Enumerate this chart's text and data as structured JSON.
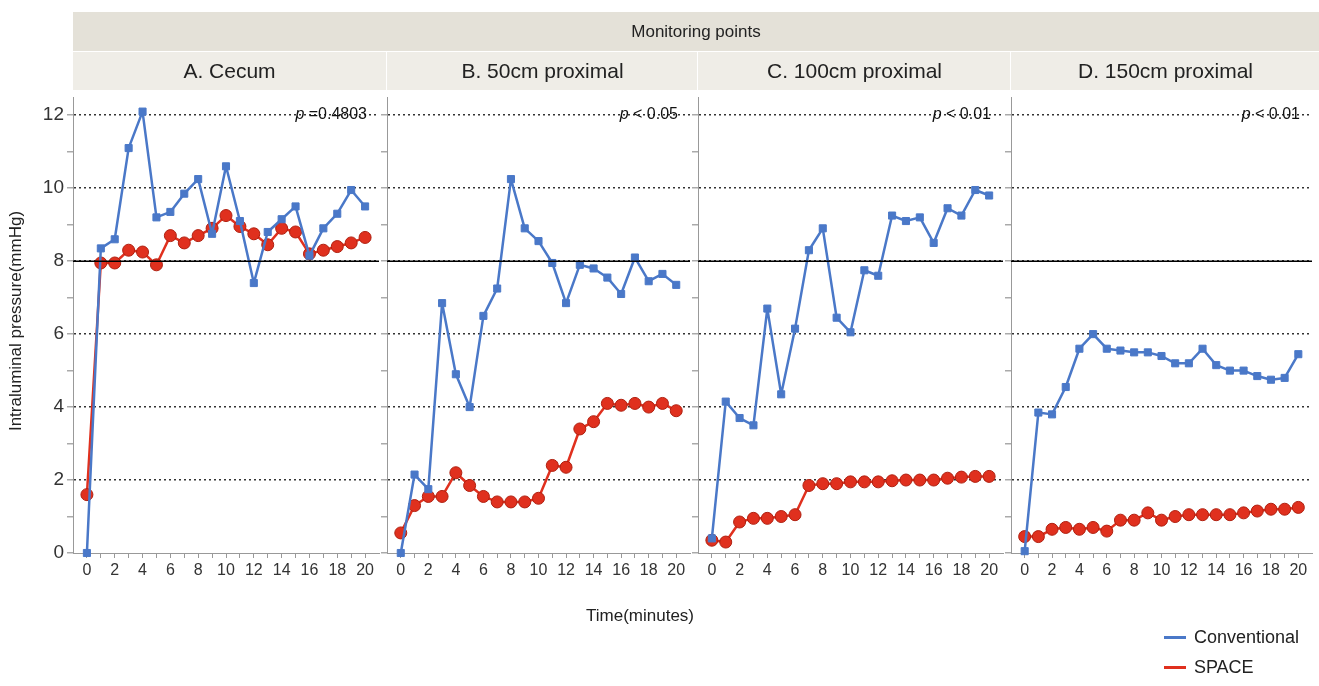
{
  "chart_data": [
    {
      "type": "line",
      "title": "A. Cecum",
      "ylabel": "Intraluminal pressure(mmHg)",
      "annotations": [
        "Monitoring points",
        "p =0.4803"
      ],
      "x": [
        0,
        1,
        2,
        3,
        4,
        5,
        6,
        7,
        8,
        9,
        10,
        11,
        12,
        13,
        14,
        15,
        16,
        17,
        18,
        19,
        20
      ],
      "series": [
        {
          "color": "#4a78c8",
          "marker": "square",
          "values": [
            0,
            8.35,
            8.6,
            11.1,
            12.1,
            9.2,
            9.35,
            9.85,
            10.25,
            8.75,
            10.6,
            9.1,
            7.4,
            8.8,
            9.15,
            9.5,
            8.15,
            8.9,
            9.3,
            9.95,
            9.5
          ]
        },
        {
          "color": "#e0301e",
          "marker": "circle",
          "values": [
            1.6,
            7.95,
            7.95,
            8.3,
            8.25,
            7.9,
            8.7,
            8.5,
            8.7,
            8.9,
            9.25,
            8.95,
            8.75,
            8.45,
            8.9,
            8.8,
            8.2,
            8.3,
            8.4,
            8.5,
            8.65
          ]
        }
      ],
      "xlim": [
        -1,
        21
      ],
      "ylim": [
        0,
        12.5
      ],
      "xticks": [
        0,
        {
          "value": 1,
          "label": null
        },
        2,
        {
          "value": 3,
          "label": null
        },
        4,
        {
          "value": 5,
          "label": null
        },
        6,
        {
          "value": 7,
          "label": null
        },
        8,
        {
          "value": 9,
          "label": null
        },
        10,
        {
          "value": 11,
          "label": null
        },
        12,
        {
          "value": 13,
          "label": null
        },
        14,
        {
          "value": 15,
          "label": null
        },
        16,
        {
          "value": 17,
          "label": null
        },
        18,
        {
          "value": 19,
          "label": null
        },
        20
      ],
      "yticks": [
        0,
        {
          "value": 1,
          "label": null
        },
        2,
        {
          "value": 3,
          "label": null
        },
        4,
        {
          "value": 5,
          "label": null
        },
        6,
        {
          "value": 7,
          "label": null
        },
        8,
        {
          "value": 9,
          "label": null
        },
        10,
        {
          "value": 11,
          "label": null
        },
        12
      ],
      "grid": "y",
      "ref_lines": [
        {
          "axis": "y",
          "value": 8,
          "color": "#000000"
        }
      ]
    },
    {
      "type": "line",
      "title": "B. 50cm proximal",
      "xlabel": "Time(minutes)",
      "annotations": [
        "p < 0.05"
      ],
      "x": [
        0,
        1,
        2,
        3,
        4,
        5,
        6,
        7,
        8,
        9,
        10,
        11,
        12,
        13,
        14,
        15,
        16,
        17,
        18,
        19,
        20
      ],
      "series": [
        {
          "color": "#4a78c8",
          "marker": "square",
          "values": [
            0,
            2.15,
            1.75,
            6.85,
            4.9,
            4.0,
            6.5,
            7.25,
            10.25,
            8.9,
            8.55,
            7.95,
            6.85,
            7.9,
            7.8,
            7.55,
            7.1,
            8.1,
            7.45,
            7.65,
            7.35
          ]
        },
        {
          "color": "#e0301e",
          "marker": "circle",
          "values": [
            0.55,
            1.3,
            1.55,
            1.55,
            2.2,
            1.85,
            1.55,
            1.4,
            1.4,
            1.4,
            1.5,
            2.4,
            2.35,
            3.4,
            3.6,
            4.1,
            4.05,
            4.1,
            4.0,
            4.1,
            3.9
          ]
        }
      ],
      "xlim": [
        -1,
        21
      ],
      "ylim": [
        0,
        12.5
      ],
      "xticks": [
        0,
        {
          "value": 1,
          "label": null
        },
        2,
        {
          "value": 3,
          "label": null
        },
        4,
        {
          "value": 5,
          "label": null
        },
        6,
        {
          "value": 7,
          "label": null
        },
        8,
        {
          "value": 9,
          "label": null
        },
        10,
        {
          "value": 11,
          "label": null
        },
        12,
        {
          "value": 13,
          "label": null
        },
        14,
        {
          "value": 15,
          "label": null
        },
        16,
        {
          "value": 17,
          "label": null
        },
        18,
        {
          "value": 19,
          "label": null
        },
        20
      ],
      "yticks": [
        0,
        {
          "value": 1,
          "label": null
        },
        2,
        {
          "value": 3,
          "label": null
        },
        4,
        {
          "value": 5,
          "label": null
        },
        6,
        {
          "value": 7,
          "label": null
        },
        8,
        {
          "value": 9,
          "label": null
        },
        10,
        {
          "value": 11,
          "label": null
        },
        12
      ],
      "tick_labels": "x",
      "grid": "y",
      "ref_lines": [
        {
          "axis": "y",
          "value": 8,
          "color": "#000000"
        }
      ]
    },
    {
      "type": "line",
      "title": "C. 100cm proximal",
      "annotations": [
        "p < 0.01"
      ],
      "x": [
        0,
        1,
        2,
        3,
        4,
        5,
        6,
        7,
        8,
        9,
        10,
        11,
        12,
        13,
        14,
        15,
        16,
        17,
        18,
        19,
        20
      ],
      "series": [
        {
          "color": "#4a78c8",
          "marker": "square",
          "values": [
            0.4,
            4.15,
            3.7,
            3.5,
            6.7,
            4.35,
            6.15,
            8.3,
            8.9,
            6.45,
            6.05,
            7.75,
            7.6,
            9.25,
            9.1,
            9.2,
            8.5,
            9.45,
            9.25,
            9.95,
            9.8
          ]
        },
        {
          "color": "#e0301e",
          "marker": "circle",
          "values": [
            0.35,
            0.3,
            0.85,
            0.95,
            0.95,
            1.0,
            1.05,
            1.85,
            1.9,
            1.9,
            1.95,
            1.95,
            1.95,
            1.98,
            2.0,
            2.0,
            2.0,
            2.05,
            2.08,
            2.1,
            2.1
          ]
        }
      ],
      "xlim": [
        -1,
        21
      ],
      "ylim": [
        0,
        12.5
      ],
      "xticks": [
        0,
        {
          "value": 1,
          "label": null
        },
        2,
        {
          "value": 3,
          "label": null
        },
        4,
        {
          "value": 5,
          "label": null
        },
        6,
        {
          "value": 7,
          "label": null
        },
        8,
        {
          "value": 9,
          "label": null
        },
        10,
        {
          "value": 11,
          "label": null
        },
        12,
        {
          "value": 13,
          "label": null
        },
        14,
        {
          "value": 15,
          "label": null
        },
        16,
        {
          "value": 17,
          "label": null
        },
        18,
        {
          "value": 19,
          "label": null
        },
        20
      ],
      "yticks": [
        0,
        {
          "value": 1,
          "label": null
        },
        2,
        {
          "value": 3,
          "label": null
        },
        4,
        {
          "value": 5,
          "label": null
        },
        6,
        {
          "value": 7,
          "label": null
        },
        8,
        {
          "value": 9,
          "label": null
        },
        10,
        {
          "value": 11,
          "label": null
        },
        12
      ],
      "tick_labels": "x",
      "grid": "y",
      "ref_lines": [
        {
          "axis": "y",
          "value": 8,
          "color": "#000000"
        }
      ]
    },
    {
      "type": "line",
      "title": "D. 150cm proximal",
      "annotations": [
        "p < 0.01"
      ],
      "x": [
        0,
        1,
        2,
        3,
        4,
        5,
        6,
        7,
        8,
        9,
        10,
        11,
        12,
        13,
        14,
        15,
        16,
        17,
        18,
        19,
        20
      ],
      "series": [
        {
          "name": "Conventional",
          "color": "#4a78c8",
          "marker": "square",
          "values": [
            0.05,
            3.85,
            3.8,
            4.55,
            5.6,
            6.0,
            5.6,
            5.55,
            5.5,
            5.5,
            5.4,
            5.2,
            5.2,
            5.6,
            5.15,
            5.0,
            5.0,
            4.85,
            4.75,
            4.8,
            5.45
          ]
        },
        {
          "name": "SPACE",
          "color": "#e0301e",
          "marker": "circle",
          "values": [
            0.45,
            0.45,
            0.65,
            0.7,
            0.65,
            0.7,
            0.6,
            0.9,
            0.9,
            1.1,
            0.9,
            1.0,
            1.05,
            1.05,
            1.05,
            1.05,
            1.1,
            1.15,
            1.2,
            1.2,
            1.25
          ]
        }
      ],
      "xlim": [
        -1,
        21
      ],
      "ylim": [
        0,
        12.5
      ],
      "xticks": [
        0,
        {
          "value": 1,
          "label": null
        },
        2,
        {
          "value": 3,
          "label": null
        },
        4,
        {
          "value": 5,
          "label": null
        },
        6,
        {
          "value": 7,
          "label": null
        },
        8,
        {
          "value": 9,
          "label": null
        },
        10,
        {
          "value": 11,
          "label": null
        },
        12,
        {
          "value": 13,
          "label": null
        },
        14,
        {
          "value": 15,
          "label": null
        },
        16,
        {
          "value": 17,
          "label": null
        },
        18,
        {
          "value": 19,
          "label": null
        },
        20
      ],
      "yticks": [
        0,
        {
          "value": 1,
          "label": null
        },
        2,
        {
          "value": 3,
          "label": null
        },
        4,
        {
          "value": 5,
          "label": null
        },
        6,
        {
          "value": 7,
          "label": null
        },
        8,
        {
          "value": 9,
          "label": null
        },
        10,
        {
          "value": 11,
          "label": null
        },
        12
      ],
      "tick_labels": "x",
      "grid": "y",
      "legend": "bottom right",
      "ref_lines": [
        {
          "axis": "y",
          "value": 8,
          "color": "#000000"
        }
      ]
    }
  ]
}
